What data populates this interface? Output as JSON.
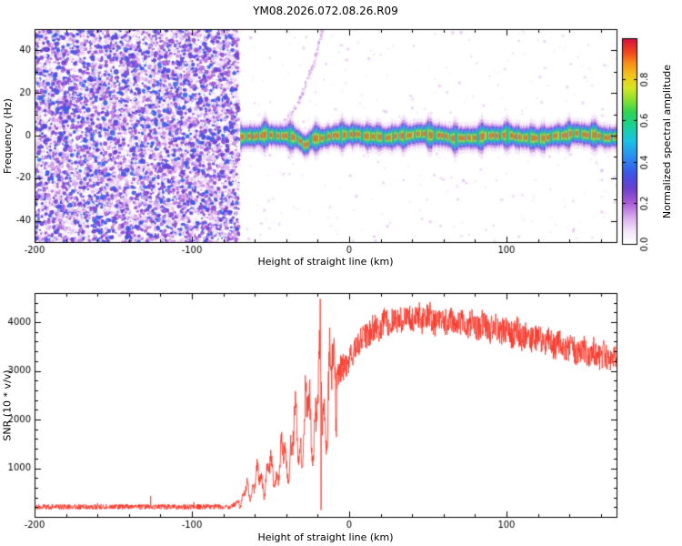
{
  "title": "YM08.2026.072.08.26.R09",
  "chart_data": [
    {
      "type": "heatmap",
      "panel": "spectrogram",
      "title": "YM08.2026.072.08.26.R09",
      "xlabel": "Height of straight line (km)",
      "ylabel": "Frequency (Hz)",
      "xlim": [
        -200,
        170
      ],
      "ylim": [
        -50,
        50
      ],
      "xticks": [
        -200,
        -100,
        0,
        100
      ],
      "xtick_minor_step": 20,
      "yticks": [
        -40,
        -20,
        0,
        20,
        40
      ],
      "ytick_minor_step": 10,
      "noise_region": {
        "x_range": [
          -200,
          -70
        ],
        "amplitude_range": [
          0.0,
          0.4
        ],
        "description": "dense low-amplitude purple speckle noise, no coherent signal"
      },
      "signal_band": {
        "x_range": [
          -70,
          170
        ],
        "center_frequency_hz": 0,
        "center_wander_hz": 1.5,
        "notch": {
          "x": -28,
          "depth_hz": -3.2,
          "width_km": 3
        },
        "intensity_levels": [
          {
            "amplitude": 0.06,
            "halfwidth_hz": 7.0
          },
          {
            "amplitude": 0.15,
            "halfwidth_hz": 5.4
          },
          {
            "amplitude": 0.3,
            "halfwidth_hz": 4.3
          },
          {
            "amplitude": 0.45,
            "halfwidth_hz": 3.4
          },
          {
            "amplitude": 0.6,
            "halfwidth_hz": 2.6
          },
          {
            "amplitude": 0.75,
            "halfwidth_hz": 1.8
          },
          {
            "amplitude": 0.92,
            "halfwidth_hz": 1.0
          }
        ]
      },
      "faint_arc": [
        [
          -44,
          4
        ],
        [
          -40,
          7
        ],
        [
          -36,
          11
        ],
        [
          -32,
          16
        ],
        [
          -29,
          21
        ],
        [
          -26,
          27
        ],
        [
          -23,
          33
        ],
        [
          -20,
          40
        ],
        [
          -18,
          46
        ],
        [
          -17,
          50
        ]
      ],
      "colorbar": {
        "label": "Normalized spectral amplitude",
        "range": [
          0,
          1
        ],
        "ticks": [
          0.0,
          0.2,
          0.4,
          0.6,
          0.8
        ],
        "colormap_stops": [
          [
            0.0,
            "#ffffff"
          ],
          [
            0.06,
            "#f3e6f9"
          ],
          [
            0.13,
            "#d9a8ec"
          ],
          [
            0.2,
            "#a85ad6"
          ],
          [
            0.27,
            "#6a3fd0"
          ],
          [
            0.34,
            "#3a55e8"
          ],
          [
            0.42,
            "#2b8cf0"
          ],
          [
            0.5,
            "#19c3e8"
          ],
          [
            0.57,
            "#17d29a"
          ],
          [
            0.64,
            "#2ed353"
          ],
          [
            0.7,
            "#8ae02e"
          ],
          [
            0.76,
            "#d6e821"
          ],
          [
            0.82,
            "#f5c51c"
          ],
          [
            0.88,
            "#f98e17"
          ],
          [
            0.93,
            "#f4491d"
          ],
          [
            1.0,
            "#d4103c"
          ]
        ]
      }
    },
    {
      "type": "line",
      "panel": "snr",
      "xlabel": "Height of straight line (km)",
      "ylabel": "SNR (10 * v/v)",
      "xlim": [
        -200,
        170
      ],
      "ylim": [
        0,
        4600
      ],
      "xticks": [
        -200,
        -100,
        0,
        100
      ],
      "xtick_minor_step": 20,
      "yticks": [
        1000,
        2000,
        3000,
        4000
      ],
      "ytick_minor_step": 200,
      "color": "#f93527",
      "series": [
        {
          "name": "SNR",
          "keypoints": [
            [
              -200,
              205
            ],
            [
              -150,
              205
            ],
            [
              -100,
              205
            ],
            [
              -75,
              210
            ],
            [
              -68,
              350
            ],
            [
              -62,
              650
            ],
            [
              -56,
              780
            ],
            [
              -50,
              850
            ],
            [
              -44,
              1050
            ],
            [
              -38,
              1350
            ],
            [
              -32,
              1650
            ],
            [
              -26,
              1950
            ],
            [
              -22,
              2100
            ],
            [
              -18,
              2250
            ],
            [
              -14,
              2450
            ],
            [
              -10,
              2700
            ],
            [
              -6,
              2950
            ],
            [
              -2,
              3150
            ],
            [
              2,
              3350
            ],
            [
              6,
              3550
            ],
            [
              10,
              3700
            ],
            [
              15,
              3850
            ],
            [
              20,
              3950
            ],
            [
              30,
              4050
            ],
            [
              40,
              4100
            ],
            [
              50,
              4080
            ],
            [
              60,
              4040
            ],
            [
              70,
              4000
            ],
            [
              80,
              3950
            ],
            [
              90,
              3890
            ],
            [
              100,
              3820
            ],
            [
              110,
              3740
            ],
            [
              120,
              3650
            ],
            [
              130,
              3560
            ],
            [
              140,
              3470
            ],
            [
              150,
              3380
            ],
            [
              160,
              3300
            ],
            [
              170,
              3250
            ]
          ]
        }
      ],
      "spike": {
        "x": -18.3,
        "peak": 4480,
        "trough": 140
      },
      "noise_model": {
        "baseline_jitter": 55,
        "fringe_region": [
          -68,
          -8
        ],
        "fringe_depth": 0.32,
        "plateau_jitter": 270
      }
    }
  ]
}
